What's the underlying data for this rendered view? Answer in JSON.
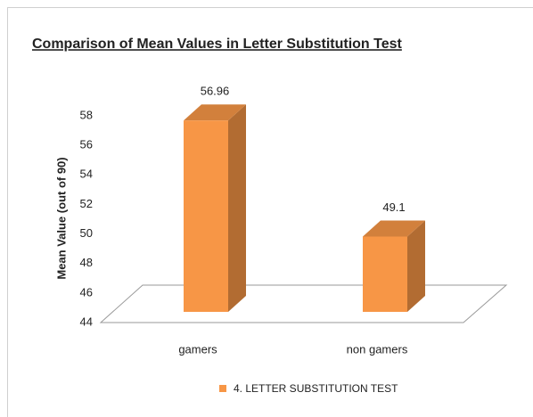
{
  "chart_data": {
    "type": "bar3d",
    "title": "Comparison of Mean Values in Letter Substitution Test",
    "y_label": "Mean Value (out of 90)",
    "categories": [
      "gamers",
      "non gamers"
    ],
    "series": [
      {
        "name": "4. LETTER SUBSTITUTION TEST",
        "color": "#f79646",
        "values": [
          56.96,
          49.1
        ]
      }
    ],
    "ylim": [
      44,
      58
    ],
    "yticks": [
      44,
      46,
      48,
      50,
      52,
      54,
      56,
      58
    ],
    "legend": "bottom"
  }
}
